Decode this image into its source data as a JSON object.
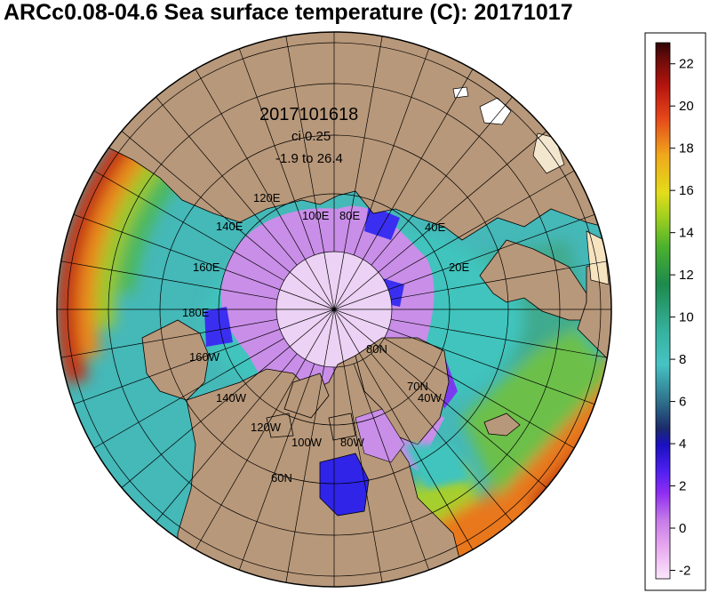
{
  "title": "ARCc0.08-04.6 Sea surface temperature (C): 20171017",
  "info": {
    "timestamp": "2017101618",
    "contour_interval": "ci 0.25",
    "range": "-1.9 to 26.4"
  },
  "longitude_labels": [
    "120E",
    "100E",
    "80E",
    "140E",
    "40E",
    "160E",
    "20E",
    "180E",
    "160W",
    "140W",
    "120W",
    "100W",
    "80W",
    "40W"
  ],
  "latitude_labels": [
    "80N",
    "70N",
    "60N"
  ],
  "colorbar": {
    "ticks": [
      "22",
      "20",
      "18",
      "16",
      "14",
      "12",
      "10",
      "8",
      "6",
      "4",
      "2",
      "0",
      "-2"
    ],
    "min": -2.4,
    "max": 23
  },
  "colors": {
    "land": "#b8987a",
    "ice_pale": "#ecd2f4",
    "ice_purple": "#c98ee8",
    "cold_blue": "#3a2ff0",
    "atlantic_teal": "#3fc4bd",
    "pacific_green": "#6cc04a",
    "warm_orange": "#e9771e",
    "hot_red": "#b5120b"
  }
}
